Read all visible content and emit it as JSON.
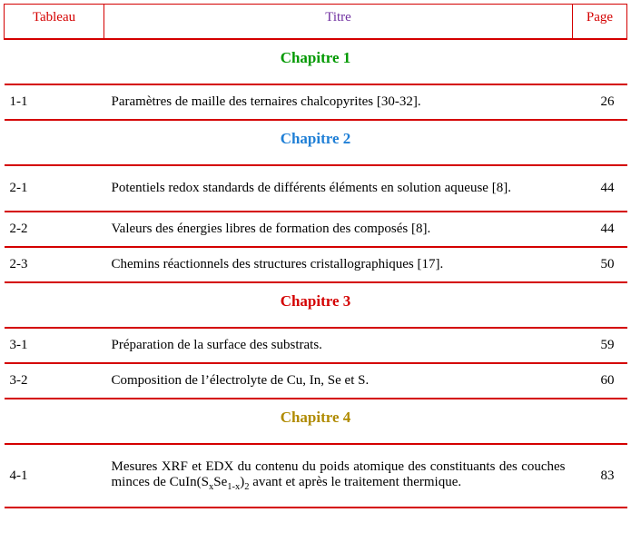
{
  "headers": {
    "tableau": "Tableau",
    "titre": "Titre",
    "page": "Page"
  },
  "chapters": [
    {
      "label": "Chapitre 1",
      "color": "#009900"
    },
    {
      "label": "Chapitre 2",
      "color": "#1f7fd6"
    },
    {
      "label": "Chapitre 3",
      "color": "#d40000"
    },
    {
      "label": "Chapitre 4",
      "color": "#b08b00"
    }
  ],
  "rows": {
    "c1r1": {
      "tab": "1-1",
      "titre": "Paramètres de maille des ternaires chalcopyrites [30-32].",
      "page": "26"
    },
    "c2r1": {
      "tab": "2-1",
      "titre": "Potentiels redox standards de différents éléments en solution aqueuse [8].",
      "page": "44"
    },
    "c2r2": {
      "tab": "2-2",
      "titre": "Valeurs des énergies libres de formation des composés [8].",
      "page": "44"
    },
    "c2r3": {
      "tab": "2-3",
      "titre": "Chemins réactionnels des structures cristallographiques [17].",
      "page": "50"
    },
    "c3r1": {
      "tab": "3-1",
      "titre": "Préparation de la surface des substrats.",
      "page": "59"
    },
    "c3r2": {
      "tab": "3-2",
      "titre": "Composition de l’électrolyte de Cu, In, Se et S.",
      "page": "60"
    },
    "c4r1": {
      "tab": "4-1",
      "titre_prefix": "Mesures XRF et EDX du contenu du poids atomique des constituants des couches minces de CuIn(S",
      "titre_sub1": "x",
      "titre_mid": "Se",
      "titre_sub2": "1-x",
      "titre_close": ")",
      "titre_sub3": "2",
      "titre_suffix": " avant et après le traitement thermique.",
      "page": "83"
    }
  }
}
